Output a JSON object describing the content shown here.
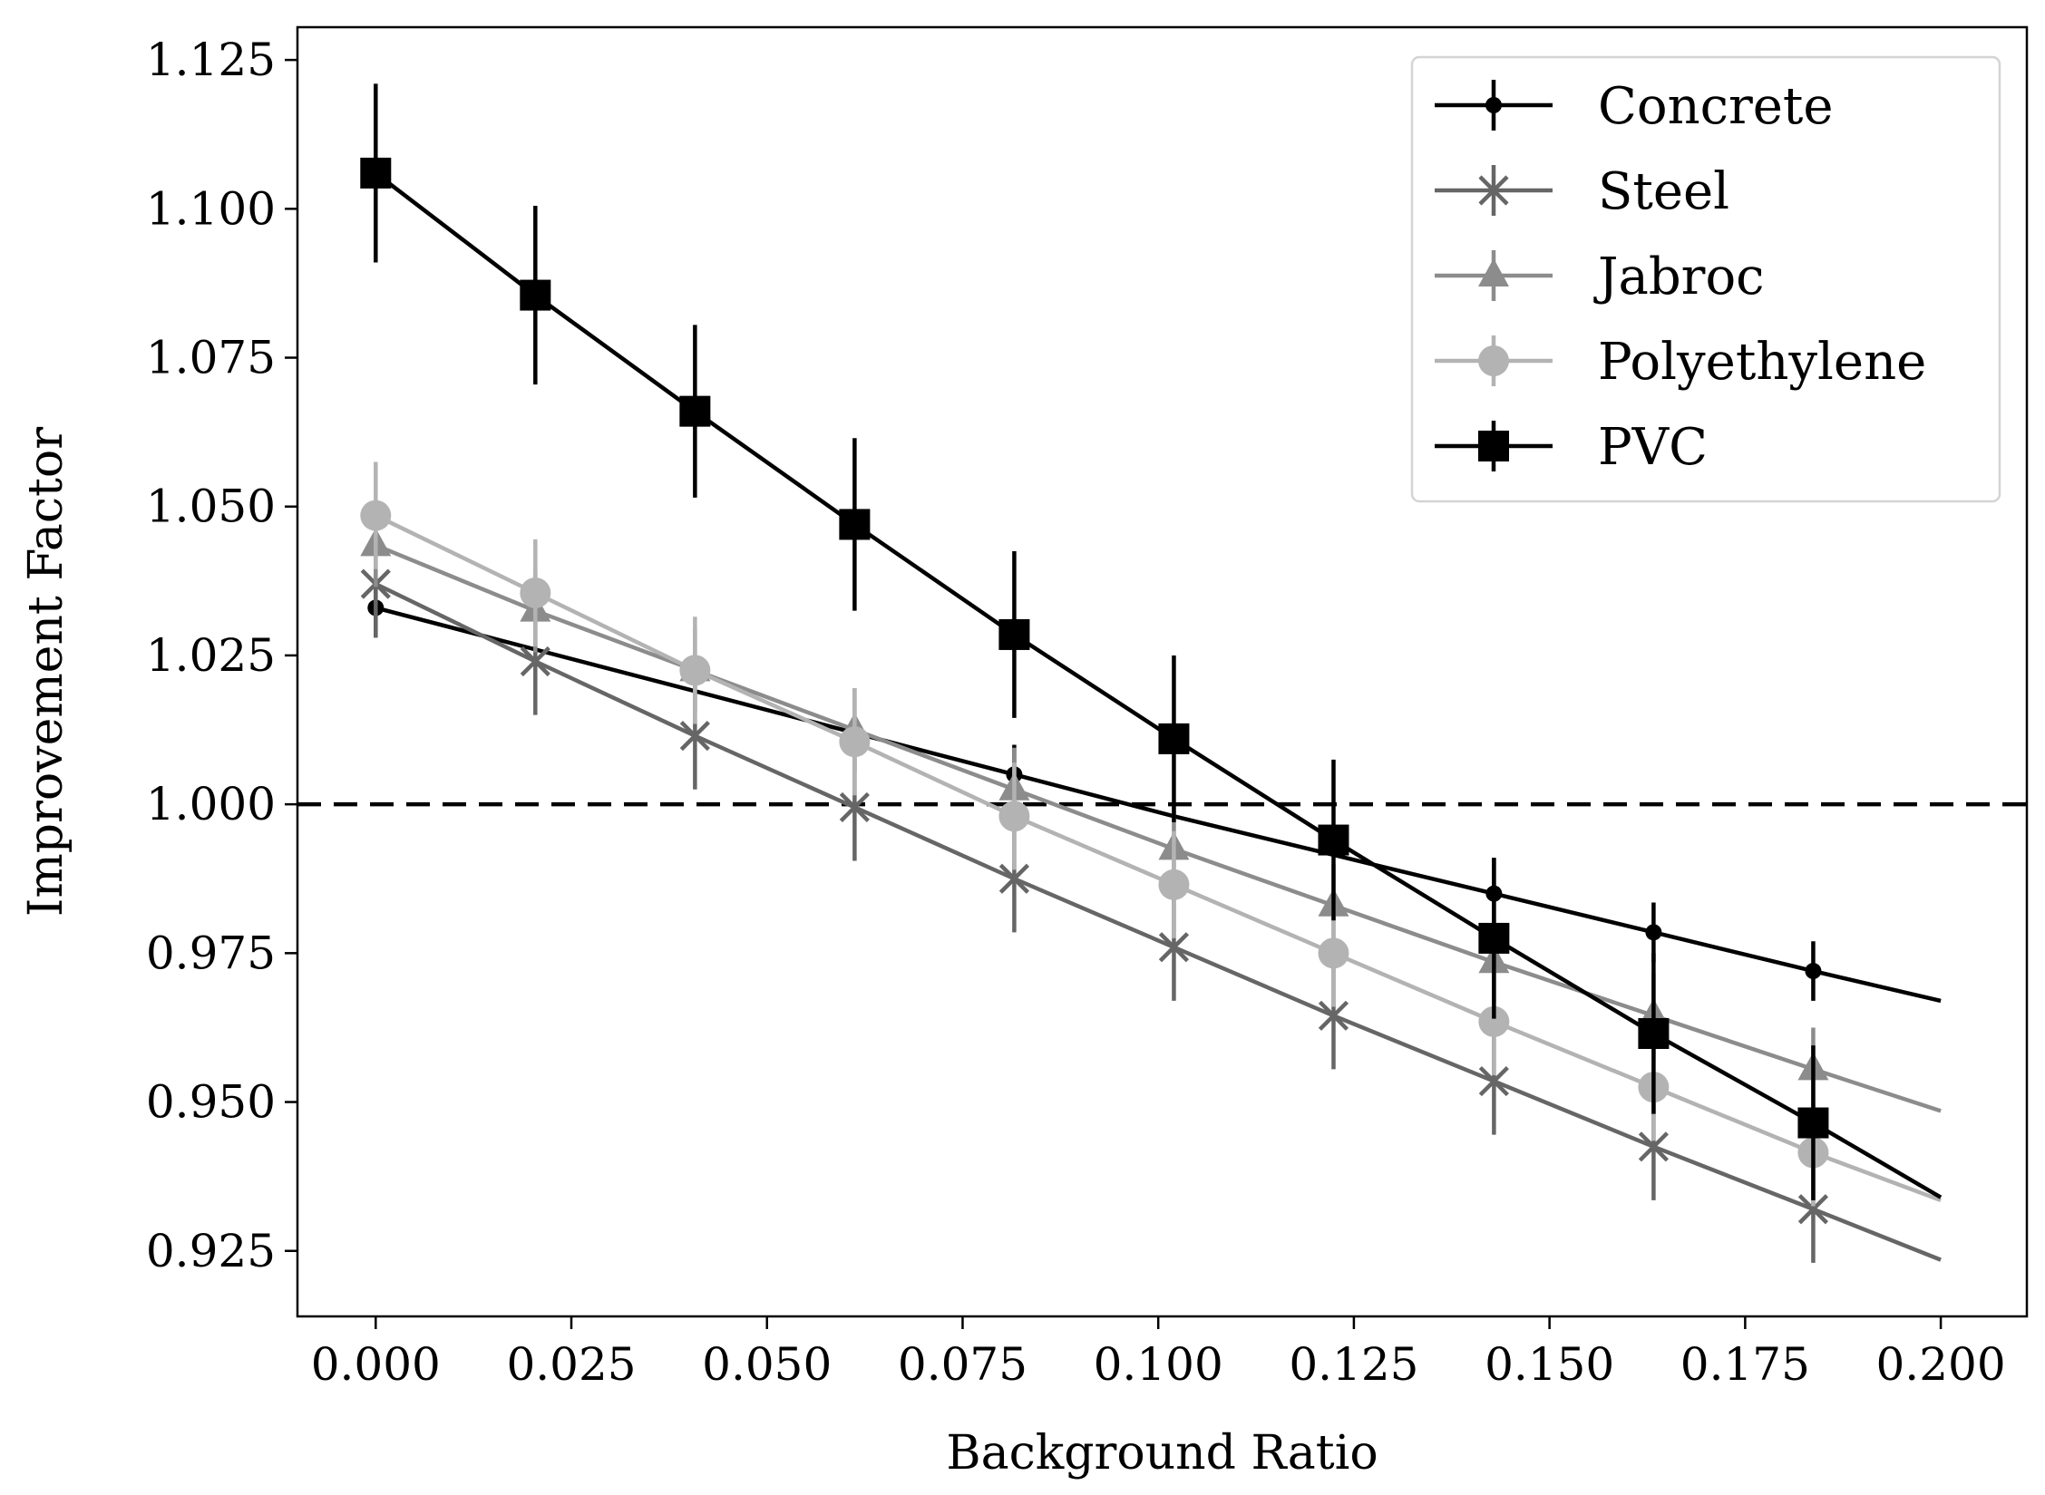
{
  "chart_data": {
    "type": "line",
    "xlabel": "Background Ratio",
    "ylabel": "Improvement Factor",
    "xlim": [
      -0.01,
      0.211
    ],
    "ylim": [
      0.914,
      1.1305
    ],
    "xticks": [
      0.0,
      0.025,
      0.05,
      0.075,
      0.1,
      0.125,
      0.15,
      0.175,
      0.2
    ],
    "xtick_labels": [
      "0.000",
      "0.025",
      "0.050",
      "0.075",
      "0.100",
      "0.125",
      "0.150",
      "0.175",
      "0.200"
    ],
    "yticks": [
      0.925,
      0.95,
      0.975,
      1.0,
      1.025,
      1.05,
      1.075,
      1.1,
      1.125
    ],
    "ytick_labels": [
      "0.925",
      "0.950",
      "0.975",
      "1.000",
      "1.025",
      "1.050",
      "1.075",
      "1.100",
      "1.125"
    ],
    "reference_line": {
      "y": 1.0,
      "style": "dashed"
    },
    "legend_position": "top-right",
    "x": [
      0.0,
      0.0204,
      0.0408,
      0.0612,
      0.0816,
      0.102,
      0.1224,
      0.1429,
      0.1633,
      0.1837,
      0.2
    ],
    "series": [
      {
        "name": "Concrete",
        "color": "#000000",
        "marker": "point",
        "values": [
          1.033,
          1.026,
          1.019,
          1.012,
          1.005,
          0.998,
          0.9915,
          0.985,
          0.9785,
          0.972,
          0.967
        ],
        "errors": [
          0.005,
          null,
          null,
          null,
          0.005,
          null,
          null,
          0.006,
          0.005,
          0.005,
          null
        ]
      },
      {
        "name": "Steel",
        "color": "#666666",
        "marker": "x",
        "values": [
          1.037,
          1.024,
          1.0115,
          0.9995,
          0.9875,
          0.976,
          0.9645,
          0.9535,
          0.9425,
          0.932,
          0.9235
        ],
        "errors": [
          0.009,
          0.009,
          0.009,
          0.009,
          0.009,
          0.009,
          0.009,
          0.009,
          0.009,
          0.009,
          null
        ]
      },
      {
        "name": "Jabroc",
        "color": "#8c8c8c",
        "marker": "triangle",
        "values": [
          1.0435,
          1.0325,
          1.0225,
          1.0125,
          1.0025,
          0.9925,
          0.983,
          0.9735,
          0.9645,
          0.9555,
          0.9485
        ],
        "errors": [
          0.007,
          0.007,
          0.007,
          0.007,
          0.007,
          0.007,
          0.007,
          0.007,
          0.007,
          0.007,
          null
        ]
      },
      {
        "name": "Polyethylene",
        "color": "#b3b3b3",
        "marker": "circle",
        "values": [
          1.0485,
          1.0355,
          1.0225,
          1.0105,
          0.998,
          0.9865,
          0.975,
          0.9635,
          0.9525,
          0.9415,
          0.9335
        ],
        "errors": [
          0.009,
          0.009,
          0.009,
          0.009,
          0.009,
          0.009,
          0.009,
          0.009,
          0.009,
          0.009,
          null
        ]
      },
      {
        "name": "PVC",
        "color": "#000000",
        "marker": "square",
        "values": [
          1.106,
          1.0855,
          1.066,
          1.047,
          1.0285,
          1.011,
          0.994,
          0.9775,
          0.9615,
          0.9465,
          0.934
        ],
        "errors": [
          0.015,
          0.015,
          0.0145,
          0.0145,
          0.014,
          0.014,
          0.0135,
          0.0135,
          0.0135,
          0.013,
          null
        ]
      }
    ]
  }
}
